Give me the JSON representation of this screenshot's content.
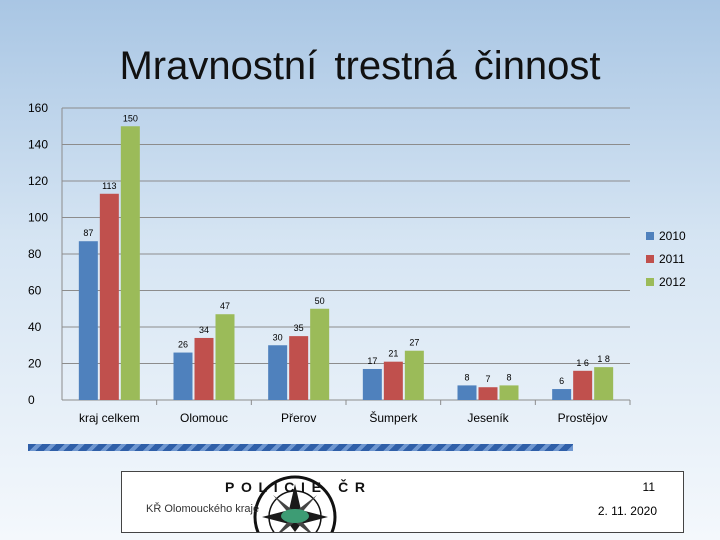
{
  "title": "Mravnostní trestná činnost",
  "chart_data": {
    "type": "bar",
    "categories": [
      "kraj celkem",
      "Olomouc",
      "Přerov",
      "Šumperk",
      "Jeseník",
      "Prostějov"
    ],
    "series": [
      {
        "name": "2010",
        "color": "#4f81bd",
        "values": [
          87,
          26,
          30,
          17,
          8,
          6
        ],
        "labels": [
          "87",
          "26",
          "30",
          "17",
          "8",
          "6"
        ]
      },
      {
        "name": "2011",
        "color": "#c0504d",
        "values": [
          113,
          34,
          35,
          21,
          7,
          16
        ],
        "labels": [
          "113",
          "34",
          "35",
          "21",
          "7",
          "1 6"
        ]
      },
      {
        "name": "2012",
        "color": "#9bbb59",
        "values": [
          150,
          47,
          50,
          27,
          8,
          18
        ],
        "labels": [
          "150",
          "47",
          "50",
          "27",
          "8",
          "1 8"
        ]
      }
    ],
    "yticks": [
      "0",
      "20",
      "40",
      "60",
      "80",
      "100",
      "120",
      "140",
      "160"
    ],
    "ylim": [
      0,
      160
    ],
    "grid": true,
    "legend": "right"
  },
  "footer": {
    "page": "11",
    "org": "KŘ Olomouckého kraje",
    "date": "2. 11. 2020",
    "emblem_text": "POLICIE ČR"
  }
}
